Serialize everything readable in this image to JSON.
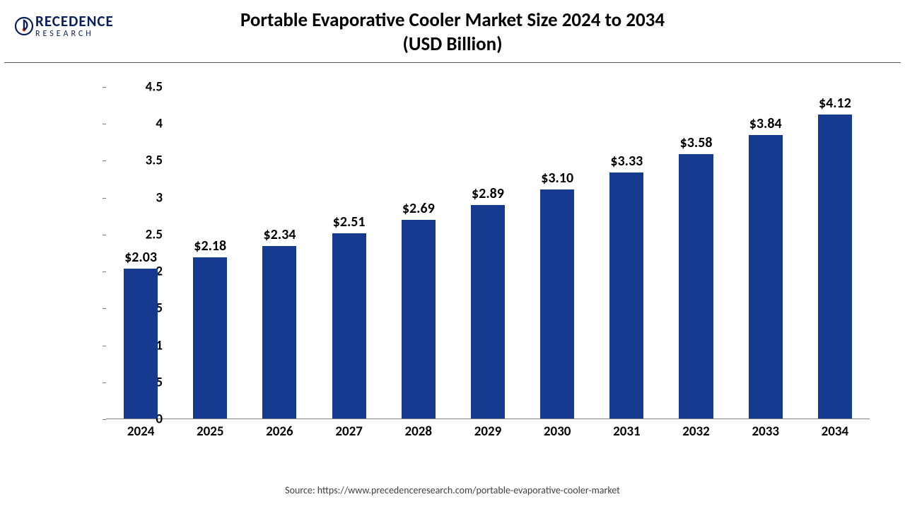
{
  "logo": {
    "main": "RECEDENCE",
    "sub": "RESEARCH",
    "glyph": "P",
    "icon_color": "#0a1f5c"
  },
  "title_line1": "Portable Evaporative Cooler Market Size 2024 to 2034",
  "title_line2": "(USD Billion)",
  "chart": {
    "type": "bar",
    "categories": [
      "2024",
      "2025",
      "2026",
      "2027",
      "2028",
      "2029",
      "2030",
      "2031",
      "2032",
      "2033",
      "2034"
    ],
    "values": [
      2.03,
      2.18,
      2.34,
      2.51,
      2.69,
      2.89,
      3.1,
      3.33,
      3.58,
      3.84,
      4.12
    ],
    "value_labels": [
      "$2.03",
      "$2.18",
      "$2.34",
      "$2.51",
      "$2.69",
      "$2.89",
      "$3.10",
      "$3.33",
      "$3.58",
      "$3.84",
      "$4.12"
    ],
    "bar_color": "#163a90",
    "ylim": [
      0,
      4.5
    ],
    "ytick_step": 0.5,
    "ytick_labels": [
      "0",
      "0.5",
      "1",
      "1.5",
      "2",
      "2.5",
      "3",
      "3.5",
      "4",
      "4.5"
    ],
    "axis_color": "#808080",
    "background_color": "#ffffff",
    "label_fontsize": 20,
    "tick_fontsize": 19,
    "bar_width_ratio": 0.49
  },
  "source": "Source: https://www.precedenceresearch.com/portable-evaporative-cooler-market"
}
